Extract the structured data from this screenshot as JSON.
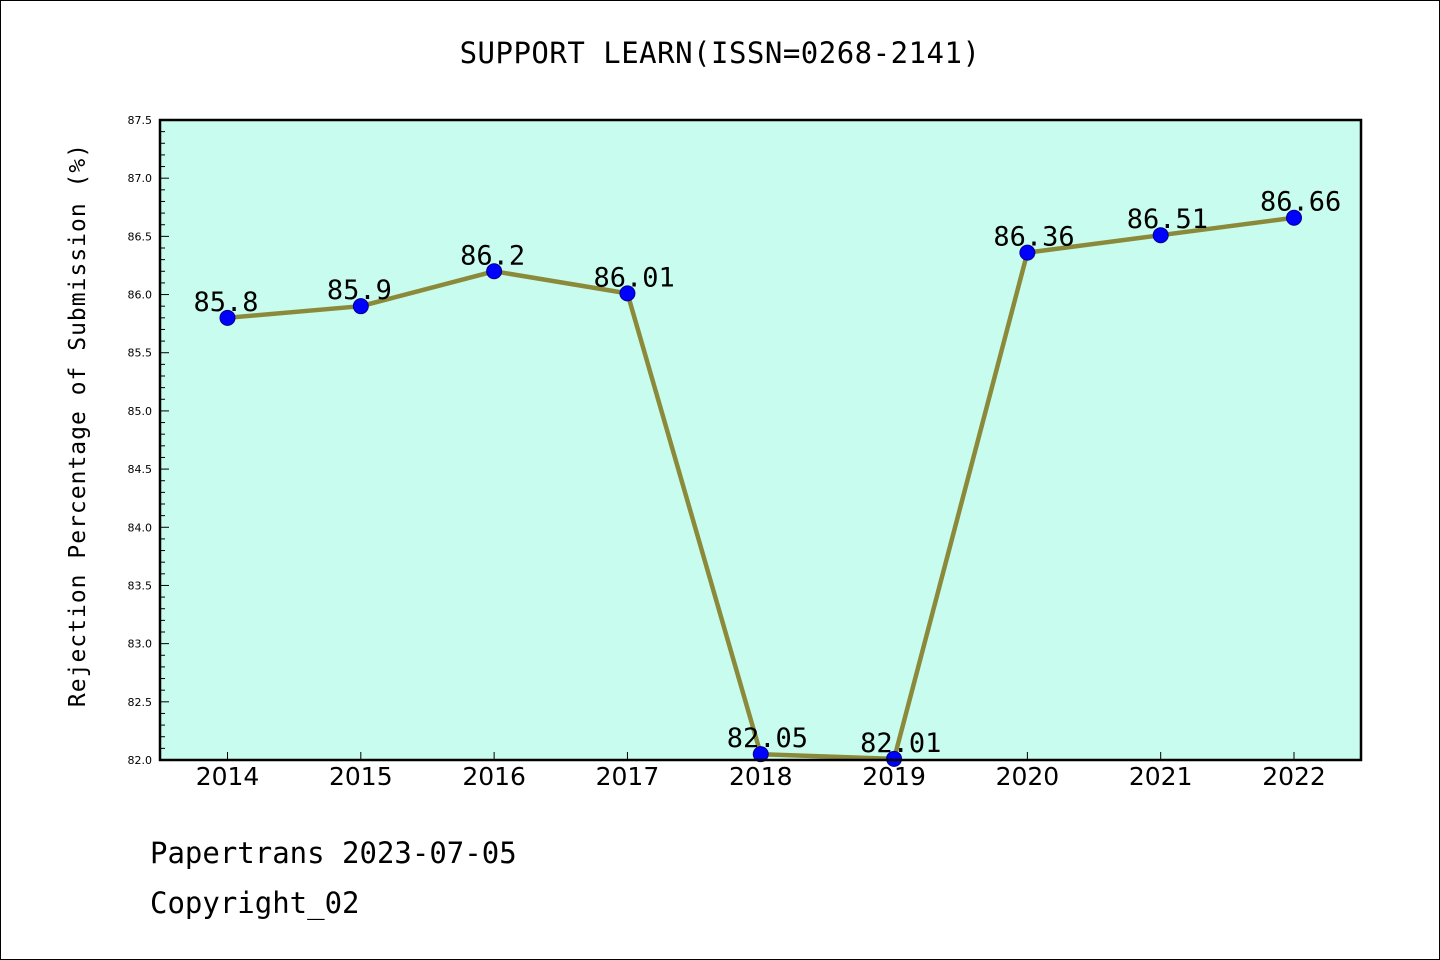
{
  "chart_data": {
    "type": "line",
    "title": "SUPPORT LEARN(ISSN=0268-2141)",
    "xlabel": "",
    "ylabel": "Rejection Percentage of Submission (%)",
    "categories": [
      "2014",
      "2015",
      "2016",
      "2017",
      "2018",
      "2019",
      "2020",
      "2021",
      "2022"
    ],
    "values": [
      85.8,
      85.9,
      86.2,
      86.01,
      82.05,
      82.01,
      86.36,
      86.51,
      86.66
    ],
    "data_labels": [
      "85.8",
      "85.9",
      "86.2",
      "86.01",
      "82.05",
      "82.01",
      "86.36",
      "86.51",
      "86.66"
    ],
    "ylim": [
      82.0,
      87.5
    ],
    "yticks": [
      "82.0",
      "82.5",
      "83.0",
      "83.5",
      "84.0",
      "84.5",
      "85.0",
      "85.5",
      "86.0",
      "86.5",
      "87.0",
      "87.5"
    ],
    "grid": false,
    "legend": "none",
    "colors": {
      "plot_background": "#c8fcee",
      "line": "#8b8a3a",
      "marker": "#0000ff",
      "marker_edge": "#00008b"
    }
  },
  "footer": {
    "line1": "Papertrans 2023-07-05",
    "line2": "Copyright_02"
  }
}
